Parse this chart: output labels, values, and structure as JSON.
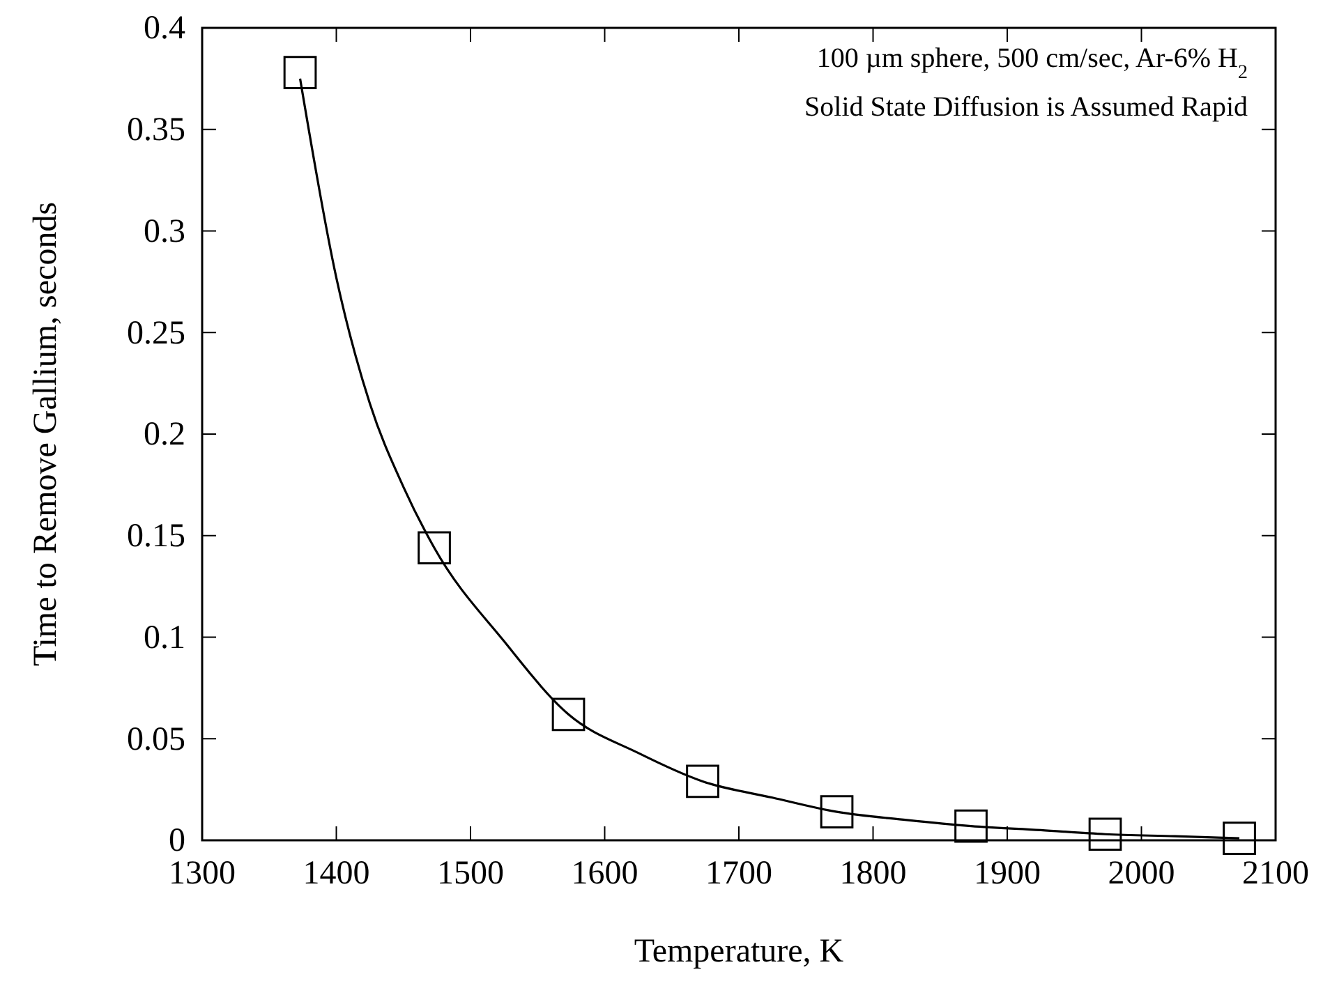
{
  "chart_data": {
    "type": "scatter",
    "xlabel": "Temperature, K",
    "ylabel": "Time to Remove Gallium, seconds",
    "annotations": [
      "100 µm sphere, 500 cm/sec, Ar-6% H$_{2}$",
      "Solid State Diffusion is Assumed Rapid"
    ],
    "x": [
      1373,
      1473,
      1573,
      1673,
      1773,
      1873,
      1973,
      2073
    ],
    "xlim": [
      1300,
      2100
    ],
    "xticks": [
      1300,
      1400,
      1500,
      1600,
      1700,
      1800,
      1900,
      2000,
      2100
    ],
    "ylim": [
      0,
      0.4
    ],
    "yticks": [
      0,
      0.05,
      0.1,
      0.15,
      0.2,
      0.25,
      0.3,
      0.35,
      0.4
    ],
    "grid": false,
    "series": [
      {
        "marker": "square",
        "color": "#000000",
        "values": [
          0.378,
          0.144,
          0.062,
          0.029,
          0.014,
          0.007,
          0.003,
          0.001
        ]
      },
      {
        "type": "line",
        "line_style": "solid",
        "color": "#000000",
        "x": [
          1373,
          1400,
          1425,
          1450,
          1473,
          1525,
          1573,
          1625,
          1673,
          1725,
          1773,
          1825,
          1873,
          1925,
          1973,
          2025,
          2073
        ],
        "values": [
          0.375,
          0.277,
          0.215,
          0.174,
          0.144,
          0.098,
          0.062,
          0.043,
          0.029,
          0.021,
          0.014,
          0.01,
          0.007,
          0.005,
          0.003,
          0.002,
          0.001
        ]
      }
    ]
  }
}
